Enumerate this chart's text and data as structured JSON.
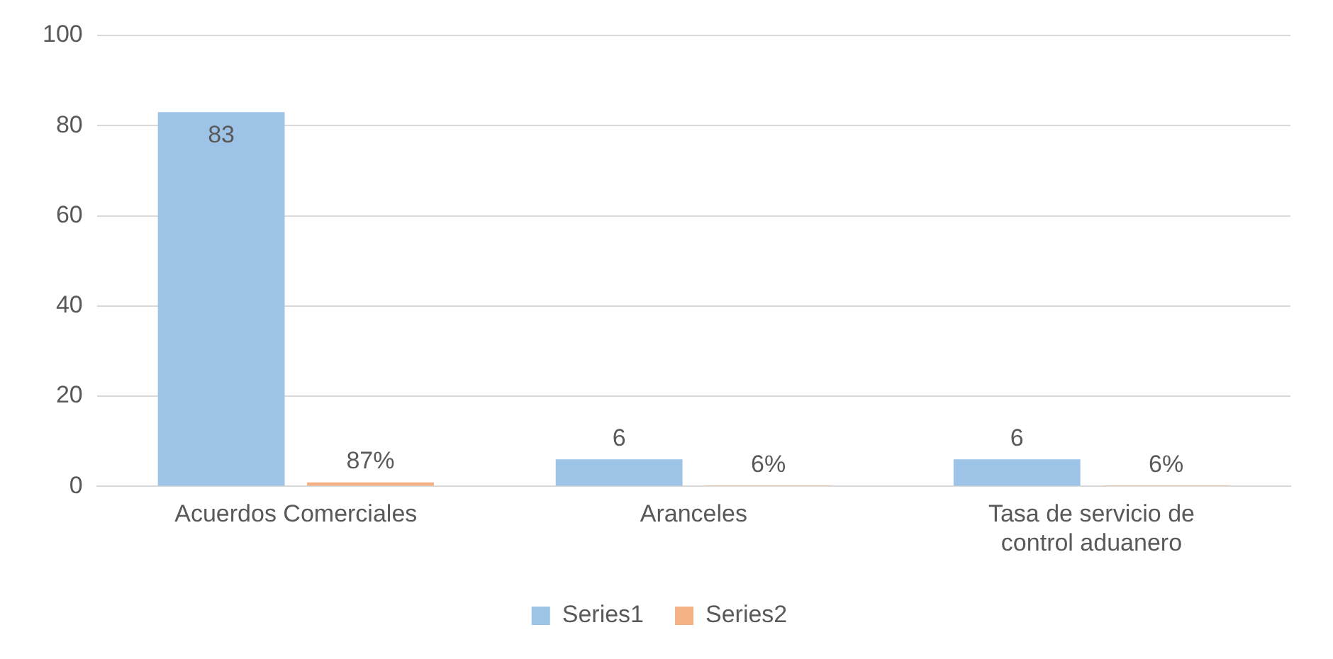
{
  "chart_data": {
    "type": "bar",
    "categories": [
      "Acuerdos Comerciales",
      "Aranceles",
      "Tasa de servicio de control aduanero"
    ],
    "series": [
      {
        "name": "Series1",
        "color": "#9dc3e6",
        "values": [
          83,
          6,
          6
        ],
        "value_labels": [
          "83",
          "6",
          "6"
        ]
      },
      {
        "name": "Series2",
        "color": "#f4b183",
        "values": [
          0.87,
          0.06,
          0.06
        ],
        "value_labels": [
          "87%",
          "6%",
          "6%"
        ]
      }
    ],
    "ylim": [
      0,
      100
    ],
    "yticks": [
      0,
      20,
      40,
      60,
      80,
      100
    ],
    "grid": "y",
    "legend": "bottom"
  }
}
